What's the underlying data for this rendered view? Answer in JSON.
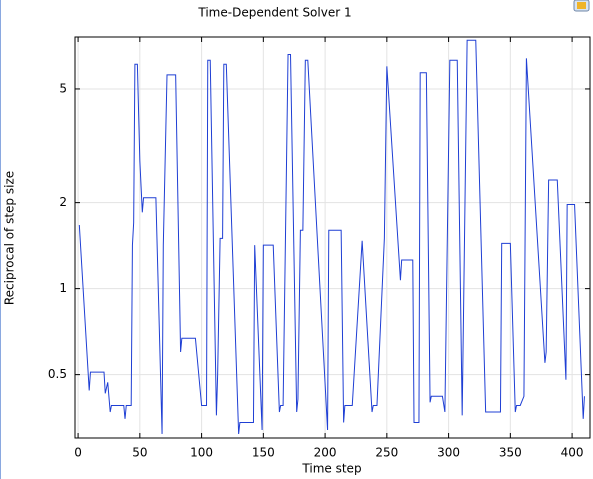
{
  "chart_data": {
    "type": "line",
    "title": "Time-Dependent Solver 1",
    "xlabel": "Time step",
    "ylabel": "Reciprocal of step size",
    "x": [
      1,
      9,
      10,
      21,
      22,
      24,
      26,
      27,
      37,
      38,
      39,
      43,
      44,
      45,
      46,
      48,
      50,
      52,
      53,
      63,
      68,
      69,
      72,
      79,
      83,
      84,
      95,
      100,
      104,
      105,
      107,
      112,
      113,
      115,
      117,
      118,
      120,
      130,
      131,
      142,
      143,
      149,
      150,
      158,
      163,
      164,
      166,
      170,
      172,
      177,
      178,
      180,
      182,
      184,
      186,
      202,
      203,
      213,
      215,
      216,
      222,
      230,
      238,
      239,
      242,
      248,
      250,
      261,
      262,
      271,
      272,
      276,
      277,
      282,
      285,
      286,
      295,
      297,
      301,
      307,
      311,
      315,
      322,
      330,
      342,
      343,
      350,
      354,
      355,
      358,
      361,
      363,
      378,
      379,
      381,
      388,
      395,
      396,
      402,
      409,
      410
    ],
    "values": [
      1.67,
      0.44,
      0.51,
      0.51,
      0.43,
      0.47,
      0.37,
      0.39,
      0.39,
      0.35,
      0.39,
      0.39,
      1.42,
      1.7,
      6.1,
      6.1,
      2.8,
      1.85,
      2.08,
      2.08,
      0.31,
      1.42,
      5.6,
      5.6,
      0.6,
      0.67,
      0.67,
      0.39,
      0.39,
      6.3,
      6.3,
      0.36,
      0.5,
      1.5,
      1.5,
      6.1,
      6.1,
      0.31,
      0.34,
      0.34,
      1.42,
      0.32,
      1.42,
      1.42,
      0.37,
      0.39,
      0.39,
      6.6,
      6.6,
      0.37,
      0.41,
      1.6,
      1.6,
      6.3,
      6.3,
      0.32,
      1.6,
      1.6,
      0.34,
      0.39,
      0.39,
      1.47,
      0.37,
      0.39,
      0.39,
      1.5,
      6,
      1.07,
      1.26,
      1.26,
      0.34,
      0.34,
      5.7,
      5.7,
      0.4,
      0.42,
      0.42,
      0.37,
      6.3,
      6.3,
      0.36,
      7.4,
      7.4,
      0.37,
      0.37,
      1.44,
      1.44,
      0.37,
      0.39,
      0.39,
      0.42,
      6.4,
      0.55,
      0.6,
      2.4,
      2.4,
      0.48,
      1.97,
      1.97,
      0.35,
      0.42
    ],
    "color": "#1f3fd4",
    "xlim": [
      -2.5,
      414.5
    ],
    "xticks": [
      0,
      50,
      100,
      150,
      200,
      250,
      300,
      350,
      400
    ],
    "ylim": [
      0.3,
      7.6
    ],
    "yticks": [
      0.5,
      1,
      2,
      5
    ],
    "ylog": true,
    "grid": true
  }
}
